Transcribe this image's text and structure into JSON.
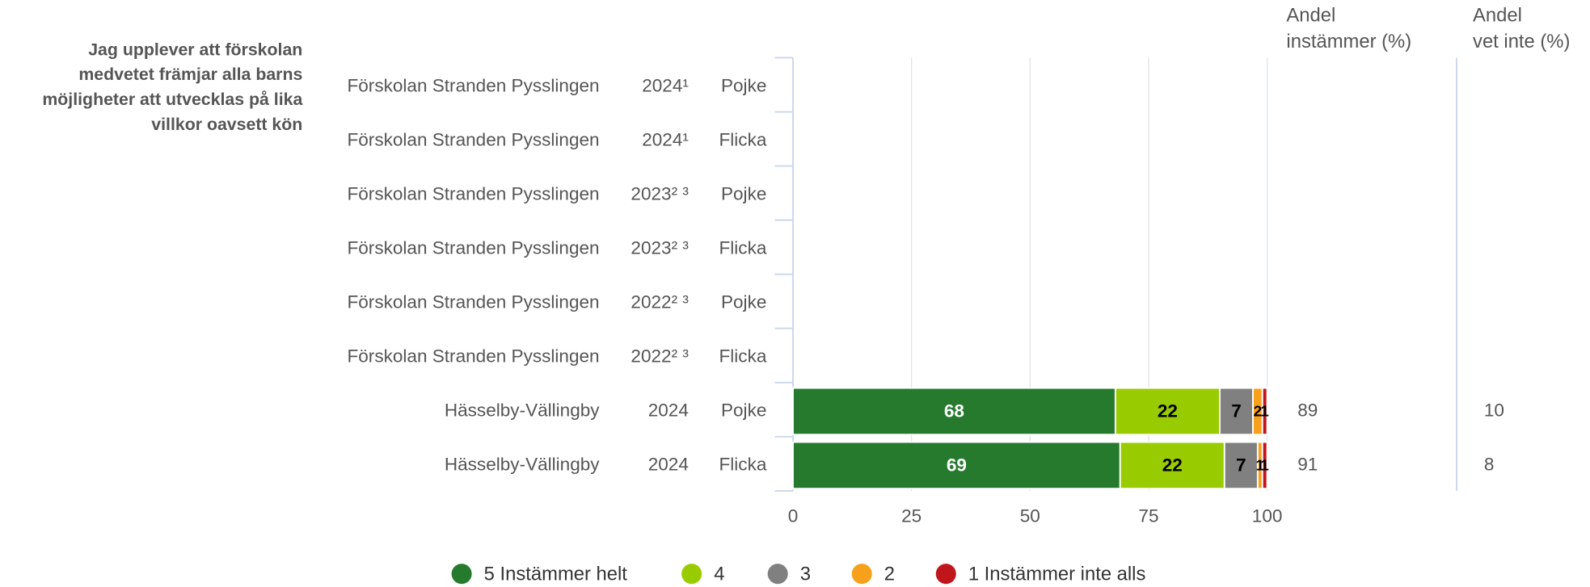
{
  "chart_data": {
    "type": "bar",
    "orientation": "horizontal",
    "stacked": true,
    "question_lines": [
      "Jag upplever att förskolan",
      "medvetet främjar alla barns",
      "möjligheter att utvecklas på lika",
      "villkor oavsett kön"
    ],
    "categories": [
      "Förskolan Stranden Pysslingen",
      "Förskolan Stranden Pysslingen",
      "Förskolan Stranden Pysslingen",
      "Förskolan Stranden Pysslingen",
      "Förskolan Stranden Pysslingen",
      "Förskolan Stranden Pysslingen",
      "Hässelby-Vällingby",
      "Hässelby-Vällingby"
    ],
    "years": [
      "2024¹",
      "2024¹",
      "2023² ³",
      "2023² ³",
      "2022² ³",
      "2022² ³",
      "2024",
      "2024"
    ],
    "groups": [
      "Pojke",
      "Flicka",
      "Pojke",
      "Flicka",
      "Pojke",
      "Flicka",
      "Pojke",
      "Flicka"
    ],
    "series": [
      {
        "name": "5 Instämmer helt",
        "color": "#267a2e",
        "values": [
          null,
          null,
          null,
          null,
          null,
          null,
          68,
          69
        ]
      },
      {
        "name": "4",
        "color": "#99cc00",
        "values": [
          null,
          null,
          null,
          null,
          null,
          null,
          22,
          22
        ]
      },
      {
        "name": "3",
        "color": "#808080",
        "values": [
          null,
          null,
          null,
          null,
          null,
          null,
          7,
          7
        ]
      },
      {
        "name": "2",
        "color": "#f7a01c",
        "values": [
          null,
          null,
          null,
          null,
          null,
          null,
          2,
          1
        ]
      },
      {
        "name": "1 Instämmer inte alls",
        "color": "#c0161b",
        "values": [
          null,
          null,
          null,
          null,
          null,
          null,
          1,
          1
        ]
      }
    ],
    "extra_columns": [
      {
        "header": [
          "Andel",
          "instämmer (%)"
        ],
        "values": [
          null,
          null,
          null,
          null,
          null,
          null,
          89,
          91
        ]
      },
      {
        "header": [
          "Andel",
          "vet inte (%)"
        ],
        "values": [
          null,
          null,
          null,
          null,
          null,
          null,
          10,
          8
        ]
      }
    ],
    "xlim": [
      0,
      100
    ],
    "xticks": [
      0,
      25,
      50,
      75,
      100
    ],
    "grid": true
  }
}
